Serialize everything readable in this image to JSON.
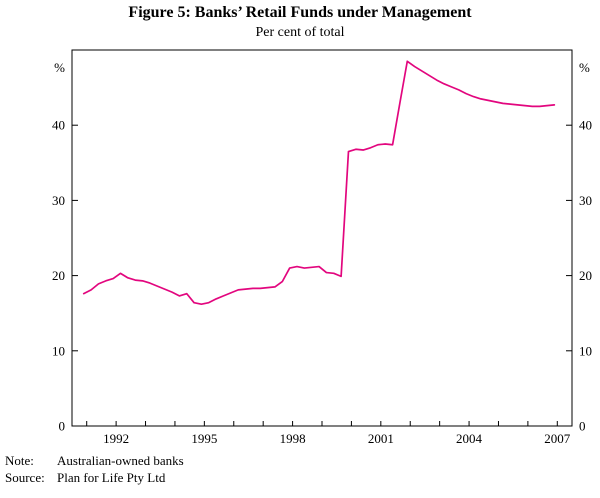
{
  "figure": {
    "title": "Figure 5: Banks’ Retail Funds under Management",
    "subtitle": "Per cent of total",
    "note_label": "Note:",
    "note_text": "Australian-owned banks",
    "source_label": "Source:",
    "source_text": "Plan for Life Pty Ltd"
  },
  "chart_data": {
    "type": "line",
    "title": "Figure 5: Banks’ Retail Funds under Management",
    "subtitle": "Per cent of total",
    "unit_label": "%",
    "line_color": "#e2067e",
    "frame_color": "#000000",
    "xlim": [
      1990.5,
      2007.5
    ],
    "ylim": [
      0,
      50
    ],
    "y_ticks": [
      0,
      10,
      20,
      30,
      40
    ],
    "x_ticks": [
      1992,
      1995,
      1998,
      2001,
      2004,
      2007
    ],
    "minor_x_tick_start": 1991,
    "minor_x_tick_end": 2007,
    "grid": false,
    "legend": "none",
    "series": [
      {
        "name": "Banks' retail funds under management (per cent of total)",
        "x": [
          1990.9,
          1991.15,
          1991.4,
          1991.65,
          1991.9,
          1992.15,
          1992.4,
          1992.65,
          1992.9,
          1993.15,
          1993.4,
          1993.65,
          1993.9,
          1994.15,
          1994.4,
          1994.65,
          1994.9,
          1995.15,
          1995.4,
          1995.65,
          1995.9,
          1996.15,
          1996.4,
          1996.65,
          1996.9,
          1997.15,
          1997.4,
          1997.65,
          1997.9,
          1998.15,
          1998.4,
          1998.65,
          1998.9,
          1999.15,
          1999.4,
          1999.65,
          1999.9,
          2000.15,
          2000.4,
          2000.65,
          2000.9,
          2001.15,
          2001.4,
          2001.65,
          2001.9,
          2002.15,
          2002.4,
          2002.65,
          2002.9,
          2003.15,
          2003.4,
          2003.65,
          2003.9,
          2004.15,
          2004.4,
          2004.65,
          2004.9,
          2005.15,
          2005.4,
          2005.65,
          2005.9,
          2006.15,
          2006.4,
          2006.65,
          2006.9
        ],
        "y": [
          17.6,
          18.1,
          18.9,
          19.3,
          19.6,
          20.3,
          19.7,
          19.4,
          19.3,
          19.0,
          18.6,
          18.2,
          17.8,
          17.3,
          17.6,
          16.4,
          16.2,
          16.4,
          16.9,
          17.3,
          17.7,
          18.1,
          18.2,
          18.3,
          18.3,
          18.4,
          18.5,
          19.2,
          21.0,
          21.2,
          21.0,
          21.1,
          21.2,
          20.4,
          20.3,
          19.9,
          36.5,
          36.8,
          36.7,
          37.0,
          37.4,
          37.5,
          37.4,
          43.0,
          48.5,
          47.8,
          47.2,
          46.6,
          46.0,
          45.5,
          45.1,
          44.7,
          44.2,
          43.8,
          43.5,
          43.3,
          43.1,
          42.9,
          42.8,
          42.7,
          42.6,
          42.5,
          42.5,
          42.6,
          42.7
        ]
      }
    ]
  }
}
